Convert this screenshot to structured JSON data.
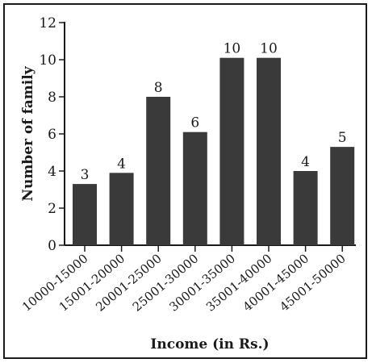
{
  "chart_data": {
    "type": "bar",
    "categories": [
      "10000-15000",
      "15001-20000",
      "20001-25000",
      "25001-30000",
      "30001-35000",
      "35001-40000",
      "40001-45000",
      "45001-50000"
    ],
    "values": [
      3.3,
      3.9,
      8.0,
      6.1,
      10.1,
      10.1,
      4.0,
      5.3
    ],
    "data_labels": [
      "3",
      "4",
      "8",
      "6",
      "10",
      "10",
      "4",
      "5"
    ],
    "title": "",
    "xlabel": "Income (in Rs.)",
    "ylabel": "Number of family",
    "ylim": [
      0,
      12
    ],
    "yticks": [
      "0",
      "2",
      "4",
      "6",
      "8",
      "10",
      "12"
    ],
    "grid": false,
    "bar_color": "#3a3a3a"
  }
}
